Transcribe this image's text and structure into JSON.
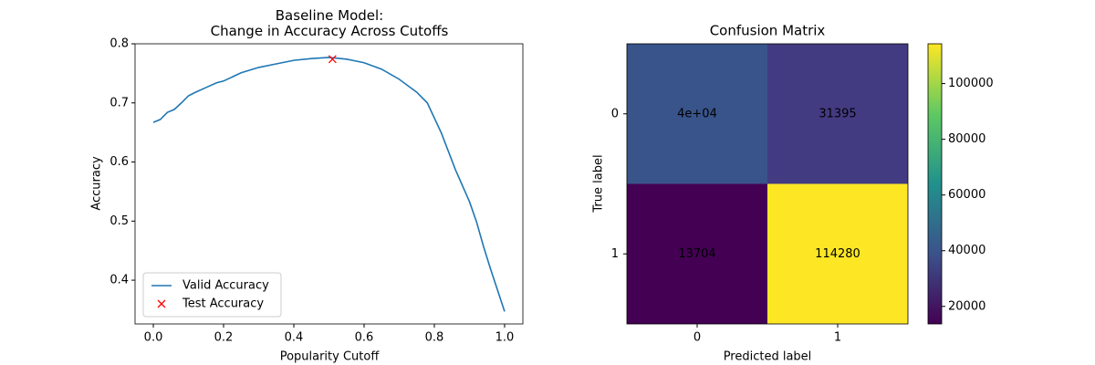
{
  "chart_data": [
    {
      "type": "line",
      "title": [
        "Baseline Model:",
        "Change in Accuracy Across Cutoffs"
      ],
      "xlabel": "Popularity Cutoff",
      "ylabel": "Accuracy",
      "series": [
        {
          "name": "Valid Accuracy",
          "color": "#1f77b4",
          "x": [
            0,
            0.02,
            0.04,
            0.06,
            0.08,
            0.1,
            0.12,
            0.15,
            0.18,
            0.2,
            0.25,
            0.3,
            0.35,
            0.4,
            0.45,
            0.5,
            0.55,
            0.6,
            0.65,
            0.7,
            0.75,
            0.78,
            0.82,
            0.86,
            0.9,
            0.92,
            0.94,
            0.96,
            1.0
          ],
          "values": [
            0.667,
            0.672,
            0.684,
            0.689,
            0.7,
            0.712,
            0.718,
            0.726,
            0.734,
            0.737,
            0.751,
            0.76,
            0.766,
            0.772,
            0.775,
            0.777,
            0.774,
            0.768,
            0.757,
            0.74,
            0.718,
            0.7,
            0.649,
            0.587,
            0.533,
            0.499,
            0.457,
            0.419,
            0.347
          ]
        },
        {
          "name": "Test Accuracy",
          "color": "#ff0000",
          "marker": "x",
          "x": [
            0.51
          ],
          "values": [
            0.774
          ]
        }
      ],
      "xlim": [
        -0.052,
        1.052
      ],
      "ylim": [
        0.326,
        0.8
      ],
      "xticks": [
        {
          "value": 0,
          "label": "0.0"
        },
        0.2,
        0.4,
        0.6,
        0.8,
        {
          "value": 1,
          "label": "1.0"
        }
      ],
      "yticks": [
        0.4,
        0.5,
        0.6,
        0.7,
        0.8
      ],
      "legend": "lower left"
    },
    {
      "type": "heatmap",
      "title": "Confusion Matrix",
      "xlabel": "Predicted label",
      "ylabel": "True label",
      "x_categories": [
        "0",
        "1"
      ],
      "y_categories": [
        "0",
        "1"
      ],
      "values": [
        [
          40000,
          31395
        ],
        [
          13704,
          114280
        ]
      ],
      "value_labels": [
        [
          "4e+04",
          "31395"
        ],
        [
          "13704",
          "114280"
        ]
      ],
      "colormap": "viridis",
      "clim": [
        13704,
        114280
      ],
      "cticks": [
        20000,
        40000,
        60000,
        80000,
        100000
      ]
    }
  ]
}
